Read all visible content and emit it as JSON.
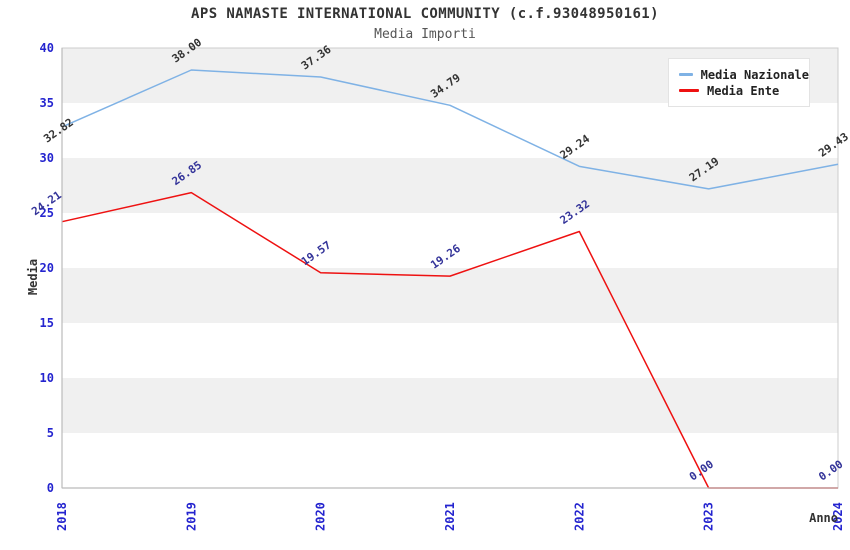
{
  "title": "APS NAMASTE INTERNATIONAL COMMUNITY (c.f.93048950161)",
  "subtitle": "Media Importi",
  "chart_data": {
    "type": "line",
    "x": [
      "2018",
      "2019",
      "2020",
      "2021",
      "2022",
      "2023",
      "2024"
    ],
    "xlabel": "Anno",
    "ylabel": "Media",
    "ylim": [
      0,
      40
    ],
    "ytick_step": 5,
    "yticks": [
      0,
      5,
      10,
      15,
      20,
      25,
      30,
      35,
      40
    ],
    "grid": "alternating-horizontal-bands",
    "legend_position": "top-right",
    "series": [
      {
        "name": "Media Nazionale",
        "color": "#7fb2e5",
        "label_color": "#333333",
        "values": [
          32.82,
          38.0,
          37.36,
          34.79,
          29.24,
          27.19,
          29.43
        ]
      },
      {
        "name": "Media Ente",
        "color": "#ee1111",
        "label_color": "#333399",
        "values": [
          24.21,
          26.85,
          19.57,
          19.26,
          23.32,
          0.0,
          0.0
        ]
      }
    ]
  },
  "colors": {
    "tick_label": "#2424cf",
    "band": "#f0f0f0",
    "plot_border": "#cccccc",
    "axis_line": "#bbbbbb",
    "title": "#333333",
    "subtitle": "#555555"
  }
}
